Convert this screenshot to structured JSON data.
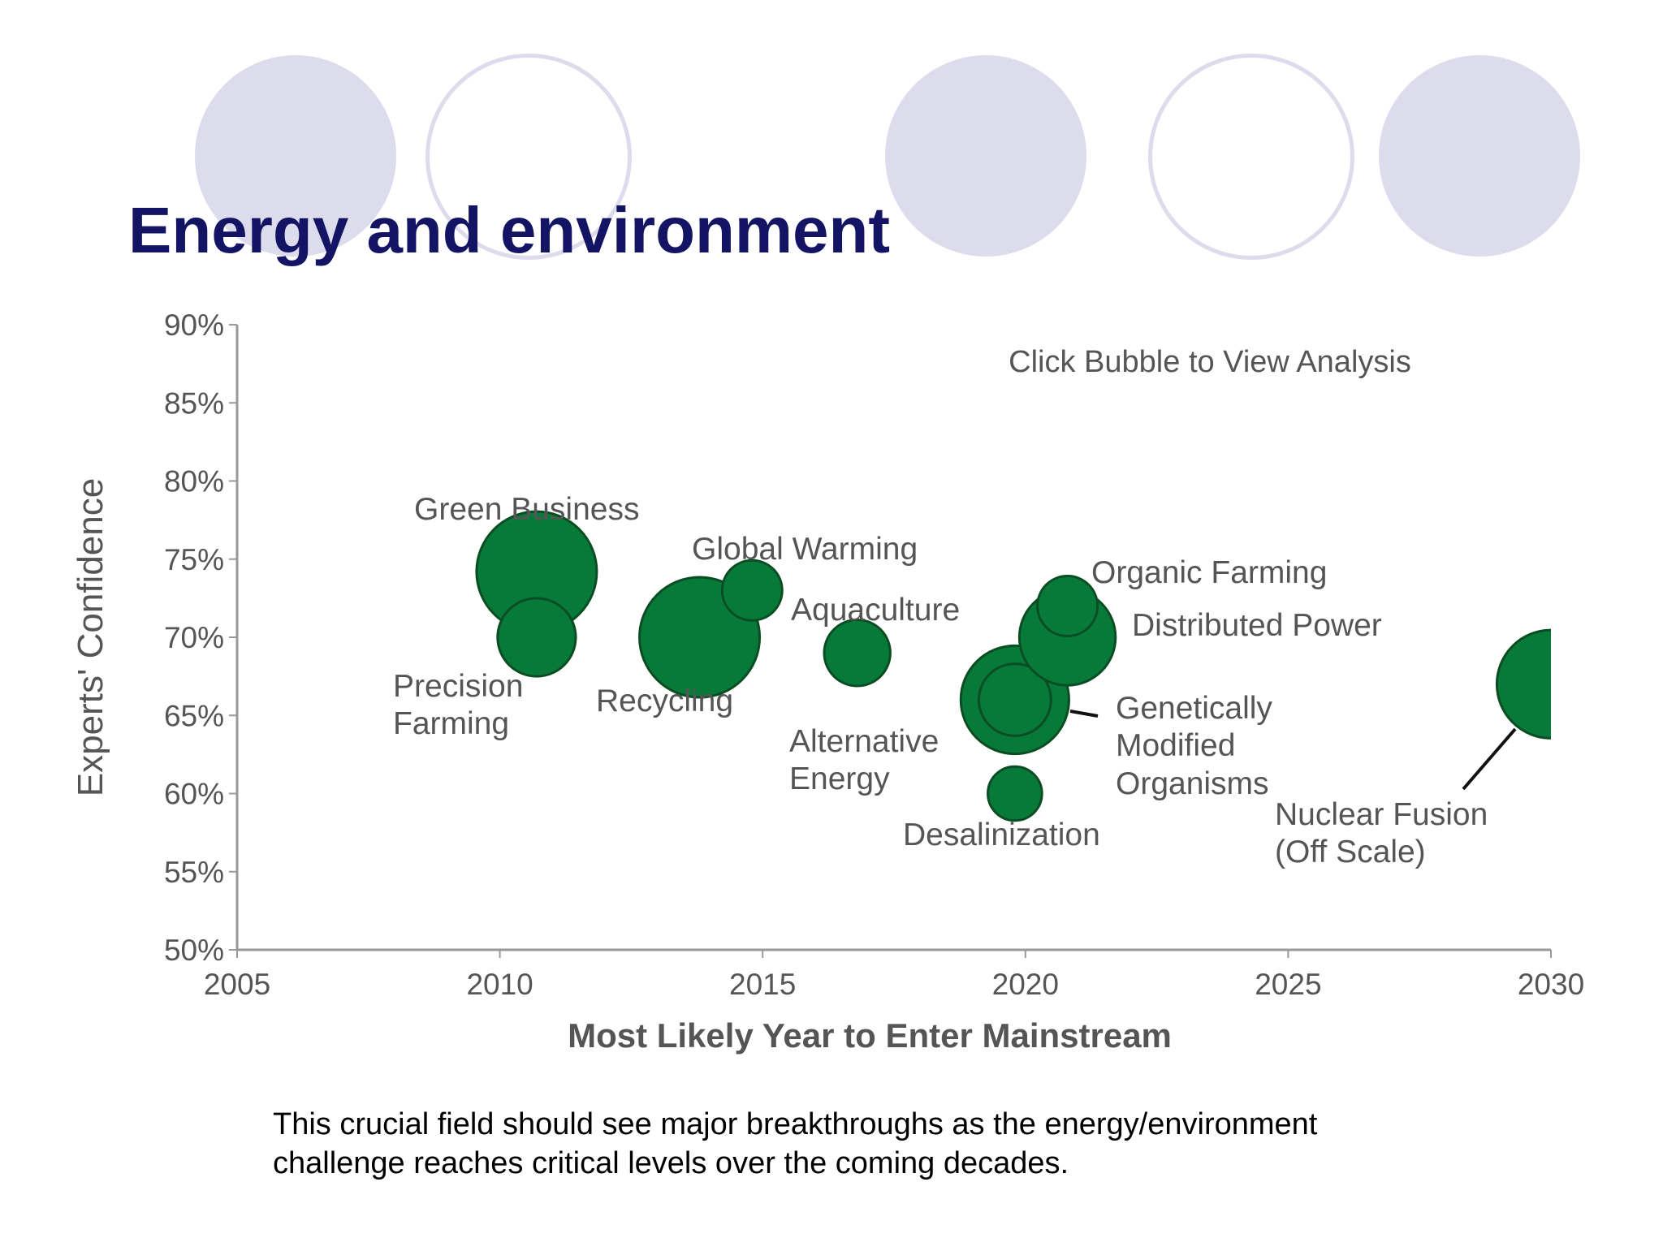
{
  "slide": {
    "title": "Energy and environment",
    "caption": "This crucial field should see major breakthroughs as the energy/environment challenge reaches critical levels over the coming decades."
  },
  "colors": {
    "title": "#141464",
    "bubble": "#077a3a",
    "decor": "#dcdcec",
    "axis": "#999999",
    "text": "#555555"
  },
  "chart_data": {
    "type": "scatter",
    "title": "",
    "annotation": "Click Bubble to View Analysis",
    "xlabel": "Most Likely Year to Enter Mainstream",
    "ylabel": "Experts' Confidence",
    "xlim": [
      2005,
      2030
    ],
    "ylim": [
      50,
      90
    ],
    "xticks": [
      "2005",
      "2010",
      "2015",
      "2020",
      "2025",
      "2030"
    ],
    "yticks": [
      "50%",
      "55%",
      "60%",
      "65%",
      "70%",
      "75%",
      "80%",
      "85%",
      "90%"
    ],
    "grid": false,
    "series": [
      {
        "points": [
          {
            "label": "Green Business",
            "x": 2010.7,
            "y": 74.2,
            "size": 2.0
          },
          {
            "label": "Precision Farming",
            "x": 2010.7,
            "y": 70.0,
            "size": 1.3
          },
          {
            "label": "Recycling",
            "x": 2013.8,
            "y": 70.0,
            "size": 2.0
          },
          {
            "label": "Global Warming",
            "x": 2014.8,
            "y": 73.0,
            "size": 1.0
          },
          {
            "label": "Aquaculture",
            "x": 2016.8,
            "y": 69.0,
            "size": 1.1
          },
          {
            "label": "Alternative Energy",
            "x": 2019.8,
            "y": 66.0,
            "size": 1.8
          },
          {
            "label": "Genetically Modified Organisms",
            "x": 2019.8,
            "y": 66.0,
            "size": 1.2
          },
          {
            "label": "Desalinization",
            "x": 2019.8,
            "y": 60.0,
            "size": 0.9
          },
          {
            "label": "Distributed Power",
            "x": 2020.8,
            "y": 70.0,
            "size": 1.6
          },
          {
            "label": "Organic Farming",
            "x": 2020.8,
            "y": 72.0,
            "size": 1.0
          },
          {
            "label": "Nuclear Fusion (Off Scale)",
            "x": 2030,
            "y": 67.0,
            "size": 1.8
          }
        ]
      }
    ],
    "labels": {
      "green_business": "Green Business",
      "global_warming": "Global Warming",
      "organic_farming": "Organic Farming",
      "aquaculture": "Aquaculture",
      "distributed_power": "Distributed Power",
      "precision": "Precision",
      "farming": "Farming",
      "recycling": "Recycling",
      "alternative": "Alternative",
      "energy": "Energy",
      "genetically": "Genetically",
      "modified": "Modified",
      "organisms": "Organisms",
      "desalinization": "Desalinization",
      "nuclear_fusion": "Nuclear Fusion",
      "off_scale": "(Off Scale)"
    }
  }
}
